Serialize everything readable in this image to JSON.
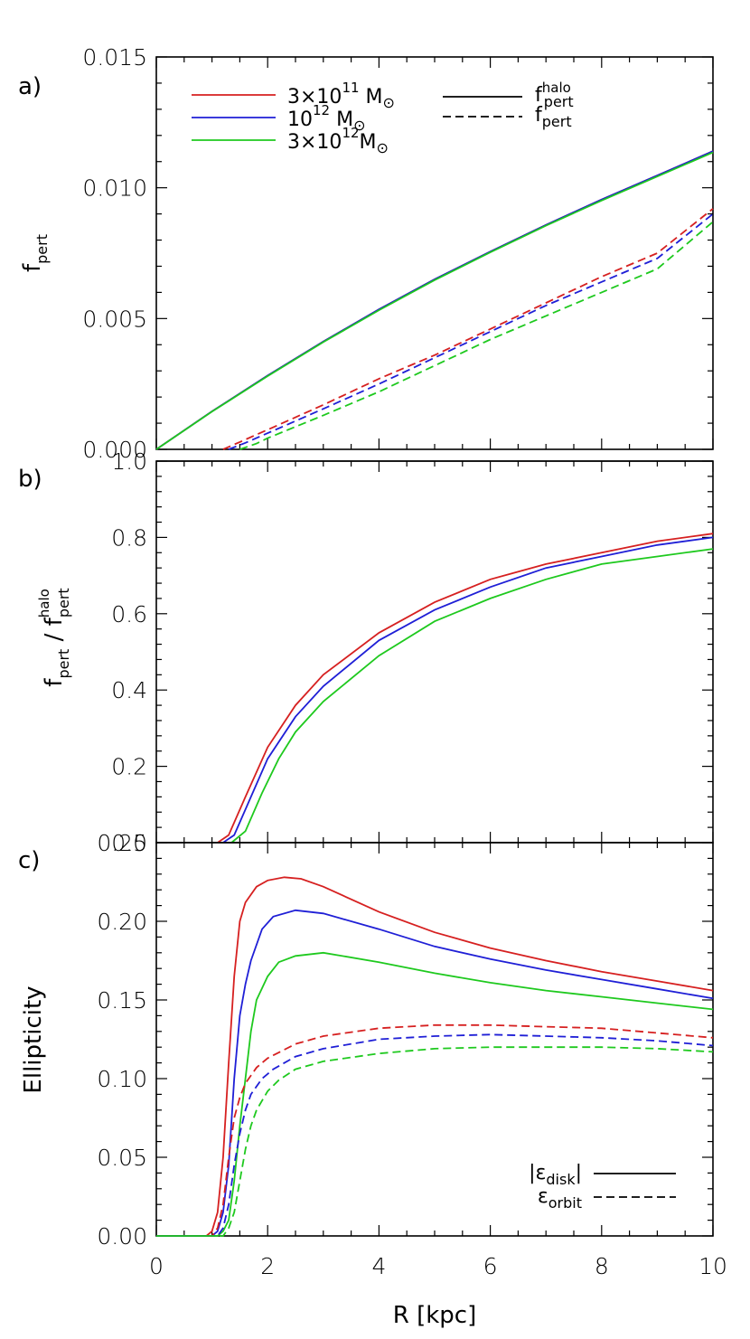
{
  "chart_data": [
    {
      "panel_label": "a)",
      "type": "line",
      "title": "",
      "xlabel": "",
      "ylabel_main": "f",
      "ylabel_sub": "pert",
      "xlim": [
        0,
        10
      ],
      "ylim": [
        0,
        0.015
      ],
      "yticks": [
        "0.000",
        "0.005",
        "0.010",
        "0.015"
      ],
      "legend": {
        "placement": "top",
        "mass_entries": [
          {
            "mantissa": "3×10",
            "exp": "11",
            "unit": " M",
            "sym": "⊙",
            "color": "#d62020"
          },
          {
            "mantissa": "10",
            "exp": "12",
            "unit": " M",
            "sym": "⊙",
            "color": "#1f1fd6"
          },
          {
            "mantissa": "3×10",
            "exp": "12",
            "unit": "M",
            "sym": "⊙",
            "color": "#1ec91e"
          }
        ],
        "style_entries": [
          {
            "main": "f",
            "sup": "halo",
            "sub": "pert",
            "dash": "solid"
          },
          {
            "main": "f",
            "sup": "",
            "sub": "pert",
            "dash": "dashed"
          }
        ]
      },
      "series": [
        {
          "color": "#d62020",
          "dash": "solid",
          "x": [
            0,
            1,
            2,
            3,
            4,
            5,
            6,
            7,
            8,
            9,
            10
          ],
          "y": [
            0,
            0.00145,
            0.00282,
            0.00412,
            0.00535,
            0.0065,
            0.00756,
            0.00858,
            0.00955,
            0.01047,
            0.0114
          ]
        },
        {
          "color": "#1f1fd6",
          "dash": "solid",
          "x": [
            0,
            1,
            2,
            3,
            4,
            5,
            6,
            7,
            8,
            9,
            10
          ],
          "y": [
            0,
            0.00145,
            0.00282,
            0.00412,
            0.00535,
            0.0065,
            0.00756,
            0.00858,
            0.00955,
            0.01047,
            0.0114
          ]
        },
        {
          "color": "#1ec91e",
          "dash": "solid",
          "x": [
            0,
            1,
            2,
            3,
            4,
            5,
            6,
            7,
            8,
            9,
            10
          ],
          "y": [
            0,
            0.00144,
            0.0028,
            0.0041,
            0.00532,
            0.00647,
            0.00753,
            0.00855,
            0.00951,
            0.01043,
            0.01135
          ]
        },
        {
          "color": "#d62020",
          "dash": "dashed",
          "x": [
            1.2,
            1.5,
            2,
            3,
            4,
            5,
            6,
            7,
            8,
            9,
            10
          ],
          "y": [
            0,
            0.00028,
            0.00075,
            0.0017,
            0.0027,
            0.0036,
            0.0046,
            0.0056,
            0.0066,
            0.0075,
            0.0092
          ]
        },
        {
          "color": "#1f1fd6",
          "dash": "dashed",
          "x": [
            1.3,
            1.6,
            2,
            3,
            4,
            5,
            6,
            7,
            8,
            9,
            10
          ],
          "y": [
            0,
            0.00025,
            0.00062,
            0.00155,
            0.0025,
            0.0035,
            0.0045,
            0.0055,
            0.0064,
            0.0073,
            0.009
          ]
        },
        {
          "color": "#1ec91e",
          "dash": "dashed",
          "x": [
            1.5,
            1.8,
            2,
            3,
            4,
            5,
            6,
            7,
            8,
            9,
            10
          ],
          "y": [
            0,
            0.00022,
            0.00043,
            0.0013,
            0.0022,
            0.0032,
            0.0042,
            0.0051,
            0.006,
            0.0069,
            0.0087
          ]
        }
      ]
    },
    {
      "panel_label": "b)",
      "type": "line",
      "title": "",
      "xlabel": "",
      "ylabel_parts": {
        "f_main": "f",
        "f_sub": "pert",
        "slash": " / ",
        "h_main": "f",
        "h_sup": "halo",
        "h_sub": "pert"
      },
      "xlim": [
        0,
        10
      ],
      "ylim": [
        0,
        1.0
      ],
      "yticks": [
        "0.0",
        "0.2",
        "0.4",
        "0.6",
        "0.8",
        "1.0"
      ],
      "hline": 1.0,
      "series": [
        {
          "color": "#d62020",
          "dash": "solid",
          "x": [
            1.1,
            1.3,
            1.6,
            2,
            2.5,
            3,
            4,
            5,
            6,
            7,
            8,
            9,
            10
          ],
          "y": [
            0,
            0.02,
            0.12,
            0.25,
            0.36,
            0.44,
            0.55,
            0.63,
            0.69,
            0.73,
            0.76,
            0.79,
            0.81
          ]
        },
        {
          "color": "#1f1fd6",
          "dash": "solid",
          "x": [
            1.2,
            1.4,
            1.7,
            2,
            2.5,
            3,
            4,
            5,
            6,
            7,
            8,
            9,
            10
          ],
          "y": [
            0,
            0.02,
            0.12,
            0.22,
            0.33,
            0.41,
            0.53,
            0.61,
            0.67,
            0.72,
            0.75,
            0.78,
            0.8
          ]
        },
        {
          "color": "#1ec91e",
          "dash": "solid",
          "x": [
            1.35,
            1.6,
            1.9,
            2.2,
            2.5,
            3,
            4,
            5,
            6,
            7,
            8,
            9,
            10
          ],
          "y": [
            0,
            0.03,
            0.13,
            0.22,
            0.29,
            0.37,
            0.49,
            0.58,
            0.64,
            0.69,
            0.73,
            0.75,
            0.77
          ]
        }
      ]
    },
    {
      "panel_label": "c)",
      "type": "line",
      "title": "",
      "xlabel": "R  [kpc]",
      "ylabel": "Ellipticity",
      "xlim": [
        0,
        10
      ],
      "ylim": [
        0,
        0.25
      ],
      "xticks": [
        "0",
        "2",
        "4",
        "6",
        "8",
        "10"
      ],
      "yticks": [
        "0.00",
        "0.05",
        "0.10",
        "0.15",
        "0.20",
        "0.25"
      ],
      "legend": {
        "placement": "bottom-right",
        "entries": [
          {
            "pre": "|ε",
            "sub": "disk",
            "post": "|",
            "dash": "solid"
          },
          {
            "pre": "ε",
            "sub": "orbit",
            "post": "",
            "dash": "dashed"
          }
        ]
      },
      "series": [
        {
          "color": "#d62020",
          "dash": "solid",
          "x": [
            0,
            0.9,
            1.0,
            1.1,
            1.2,
            1.3,
            1.4,
            1.5,
            1.6,
            1.8,
            2.0,
            2.3,
            2.6,
            3,
            4,
            5,
            6,
            7,
            8,
            9,
            10
          ],
          "y": [
            0,
            0,
            0.003,
            0.015,
            0.05,
            0.11,
            0.165,
            0.2,
            0.212,
            0.222,
            0.226,
            0.228,
            0.227,
            0.222,
            0.206,
            0.193,
            0.183,
            0.175,
            0.168,
            0.162,
            0.156
          ]
        },
        {
          "color": "#1f1fd6",
          "dash": "solid",
          "x": [
            0,
            1.0,
            1.1,
            1.2,
            1.3,
            1.4,
            1.5,
            1.6,
            1.7,
            1.9,
            2.1,
            2.5,
            3,
            4,
            5,
            6,
            7,
            8,
            9,
            10
          ],
          "y": [
            0,
            0,
            0.003,
            0.015,
            0.045,
            0.1,
            0.14,
            0.16,
            0.175,
            0.195,
            0.203,
            0.207,
            0.205,
            0.195,
            0.184,
            0.176,
            0.169,
            0.163,
            0.157,
            0.151
          ]
        },
        {
          "color": "#1ec91e",
          "dash": "solid",
          "x": [
            0,
            1.1,
            1.2,
            1.3,
            1.4,
            1.5,
            1.6,
            1.7,
            1.8,
            2.0,
            2.2,
            2.5,
            3,
            4,
            5,
            6,
            7,
            8,
            9,
            10
          ],
          "y": [
            0,
            0,
            0.003,
            0.01,
            0.035,
            0.07,
            0.1,
            0.13,
            0.15,
            0.165,
            0.174,
            0.178,
            0.18,
            0.174,
            0.167,
            0.161,
            0.156,
            0.152,
            0.148,
            0.144
          ]
        },
        {
          "color": "#d62020",
          "dash": "dashed",
          "x": [
            0,
            1.0,
            1.1,
            1.2,
            1.3,
            1.4,
            1.5,
            1.6,
            1.8,
            2.0,
            2.5,
            3,
            4,
            5,
            6,
            7,
            8,
            9,
            10
          ],
          "y": [
            0,
            0,
            0.005,
            0.02,
            0.05,
            0.075,
            0.088,
            0.097,
            0.107,
            0.113,
            0.122,
            0.127,
            0.132,
            0.134,
            0.134,
            0.133,
            0.132,
            0.129,
            0.126
          ]
        },
        {
          "color": "#1f1fd6",
          "dash": "dashed",
          "x": [
            0,
            1.1,
            1.2,
            1.3,
            1.4,
            1.5,
            1.6,
            1.7,
            1.9,
            2.1,
            2.5,
            3,
            4,
            5,
            6,
            7,
            8,
            9,
            10
          ],
          "y": [
            0,
            0,
            0.005,
            0.02,
            0.045,
            0.065,
            0.08,
            0.09,
            0.1,
            0.106,
            0.114,
            0.119,
            0.125,
            0.127,
            0.128,
            0.127,
            0.126,
            0.124,
            0.121
          ]
        },
        {
          "color": "#1ec91e",
          "dash": "dashed",
          "x": [
            0,
            1.2,
            1.3,
            1.4,
            1.5,
            1.6,
            1.7,
            1.8,
            2.0,
            2.2,
            2.5,
            3,
            4,
            5,
            6,
            7,
            8,
            9,
            10
          ],
          "y": [
            0,
            0,
            0.005,
            0.015,
            0.035,
            0.055,
            0.07,
            0.08,
            0.092,
            0.099,
            0.106,
            0.111,
            0.116,
            0.119,
            0.12,
            0.12,
            0.12,
            0.119,
            0.117
          ]
        }
      ]
    }
  ]
}
